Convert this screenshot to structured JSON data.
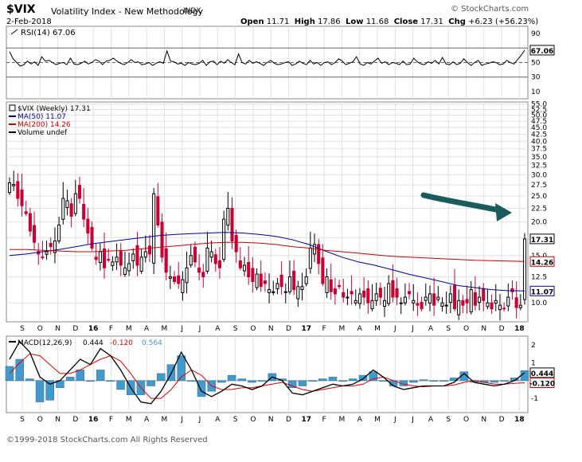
{
  "header": {
    "symbol": "$VIX",
    "name": "Volatility Index - New Methodology",
    "exchange": "INDX",
    "brand": "© StockCharts.com",
    "date": "2-Feb-2018",
    "open_label": "Open",
    "open": "11.71",
    "high_label": "High",
    "high": "17.86",
    "low_label": "Low",
    "low": "11.68",
    "close_label": "Close",
    "close": "17.31",
    "chg_label": "Chg",
    "chg": "+6.23 (+56.23%)"
  },
  "copyright": "©1999-2018 StockCharts.com All Rights Reserved",
  "colors": {
    "up": "#000000",
    "down": "#cc0033",
    "ma50": "#000099",
    "ma200": "#cc0000",
    "histogram": "#4499cc",
    "macd": "#000000",
    "signal": "#dd0000",
    "grid": "#e0e0e0",
    "arrow": "#1a5c5c"
  },
  "chart_data": [
    {
      "type": "line",
      "panel": "RSI",
      "legend": "RSI(14) 67.06",
      "y_ticks": [
        "90",
        "70",
        "50",
        "30",
        "10"
      ],
      "ylim": [
        0,
        100
      ],
      "reference_lines": [
        70,
        50,
        30
      ],
      "last_value_tag": "67.06",
      "series": [
        {
          "name": "RSI(14)",
          "values": [
            65,
            55,
            50,
            45,
            47,
            52,
            48,
            51,
            46,
            58,
            52,
            53,
            50,
            47,
            49,
            50,
            47,
            56,
            48,
            47,
            49,
            52,
            48,
            50,
            54,
            52,
            47,
            52,
            53,
            56,
            52,
            49,
            47,
            50,
            54,
            50,
            51,
            47,
            48,
            50,
            46,
            49,
            51,
            49,
            66,
            52,
            51,
            48,
            49,
            46,
            50,
            48,
            47,
            49,
            53,
            46,
            51,
            52,
            47,
            52,
            49,
            54,
            50,
            47,
            62,
            50,
            48,
            53,
            49,
            51,
            49,
            46,
            50,
            53,
            49,
            47,
            48,
            50,
            51,
            46,
            48,
            52,
            49,
            47,
            53,
            48,
            50,
            46,
            50,
            51,
            47,
            50,
            55,
            52,
            47,
            49,
            51,
            58,
            48,
            46,
            50,
            48,
            52,
            56,
            49,
            51,
            47,
            50,
            49,
            47,
            52,
            47,
            48,
            56,
            51,
            48,
            47,
            51,
            49,
            53,
            48,
            57,
            48,
            47,
            51,
            47,
            49,
            55,
            50,
            46,
            50,
            53,
            46,
            48,
            49,
            51,
            50,
            47,
            48,
            53,
            50,
            48,
            54,
            60,
            67
          ]
        }
      ]
    },
    {
      "type": "line",
      "panel": "Price",
      "chart_style": "candlestick",
      "legend": [
        "$VIX (Weekly) 17.31",
        "MA(50) 11.07",
        "MA(200) 14.26",
        "Volume undef"
      ],
      "y_ticks": [
        "55.0",
        "52.5",
        "50.0",
        "47.5",
        "45.0",
        "42.5",
        "40.0",
        "37.5",
        "35.0",
        "32.5",
        "30.0",
        "27.5",
        "25.0",
        "22.5",
        "20.0",
        "17.5",
        "15.0",
        "12.5",
        "10.0"
      ],
      "ylim": [
        8.5,
        56
      ],
      "scale": "log",
      "price_tags": [
        "17.31",
        "14.26",
        "11.07"
      ],
      "x_ticks": [
        "S",
        "O",
        "N",
        "D",
        "16",
        "F",
        "M",
        "A",
        "M",
        "J",
        "J",
        "A",
        "S",
        "O",
        "N",
        "D",
        "17",
        "F",
        "M",
        "A",
        "M",
        "J",
        "J",
        "A",
        "S",
        "O",
        "N",
        "D",
        "18"
      ],
      "series": [
        {
          "name": "$VIX (Weekly)",
          "values": [
            28.0,
            27.6,
            24.5,
            23.0,
            21.5,
            18.5,
            16.8,
            15.2,
            14.8,
            15.5,
            16.2,
            17.0,
            19.5,
            24.5,
            24.0,
            21.0,
            25.5,
            24.5,
            20.5,
            18.2,
            16.0,
            14.5,
            15.5,
            13.5,
            14.5,
            14.2,
            14.8,
            13.8,
            13.5,
            14.0,
            15.2,
            13.8,
            14.8,
            15.5,
            15.2,
            25.5,
            19.5,
            14.8,
            13.0,
            12.5,
            12.0,
            11.8,
            12.2,
            13.5,
            15.0,
            14.2,
            13.0,
            12.5,
            16.0,
            15.5,
            14.0,
            13.5,
            20.5,
            22.5,
            17.0,
            15.5,
            13.5,
            13.8,
            12.5,
            12.0,
            12.8,
            11.5,
            11.8,
            11.2,
            11.0,
            11.8,
            11.5,
            11.0,
            12.5,
            11.2,
            11.5,
            11.5,
            12.5,
            16.0,
            16.5,
            14.0,
            11.8,
            12.5,
            11.0,
            10.8,
            11.5,
            10.5,
            10.5,
            10.8,
            10.2,
            10.8,
            10.5,
            10.0,
            10.2,
            10.8,
            10.5,
            10.2,
            11.8,
            10.5,
            10.5,
            10.0,
            10.5,
            10.8,
            10.2,
            9.8,
            9.5,
            10.5,
            10.8,
            9.8,
            10.5,
            10.0,
            9.8,
            10.8,
            9.5,
            10.2,
            9.8,
            10.0,
            11.2,
            9.8,
            10.5,
            10.2,
            10.0,
            9.5,
            10.2,
            9.8,
            9.5,
            10.5,
            11.0,
            9.6,
            9.8,
            17.31
          ]
        },
        {
          "name": "MA(50)",
          "values": [
            15.0,
            15.2,
            15.5,
            15.8,
            16.2,
            16.6,
            16.9,
            17.2,
            17.5,
            17.8,
            18.0,
            18.1,
            18.2,
            18.3,
            18.2,
            18.0,
            17.7,
            17.2,
            16.5,
            15.6,
            14.8,
            14.2,
            13.8,
            13.3,
            12.8,
            12.4,
            12.0,
            11.6,
            11.4,
            11.2,
            11.1,
            11.07
          ]
        },
        {
          "name": "MA(200)",
          "values": [
            15.8,
            15.8,
            15.7,
            15.6,
            15.5,
            15.5,
            15.6,
            15.7,
            15.9,
            16.1,
            16.3,
            16.5,
            16.7,
            16.8,
            16.8,
            16.7,
            16.5,
            16.2,
            16.0,
            15.7,
            15.5,
            15.3,
            15.1,
            14.9,
            14.8,
            14.7,
            14.6,
            14.5,
            14.4,
            14.35,
            14.3,
            14.26
          ]
        }
      ]
    },
    {
      "type": "line",
      "panel": "MACD",
      "legend": [
        "MACD(12,26,9)",
        "0.444",
        "-0.120",
        "0.564"
      ],
      "y_ticks": [
        "2",
        "1",
        "0",
        "-1"
      ],
      "ylim": [
        -1.8,
        2.5
      ],
      "value_tags": [
        "0.444",
        "-0.120"
      ],
      "x_ticks": [
        "S",
        "O",
        "N",
        "D",
        "16",
        "F",
        "M",
        "A",
        "M",
        "J",
        "J",
        "A",
        "S",
        "O",
        "N",
        "D",
        "17",
        "F",
        "M",
        "A",
        "M",
        "J",
        "J",
        "A",
        "S",
        "O",
        "N",
        "D",
        "18"
      ],
      "series": [
        {
          "name": "MACD",
          "values": [
            1.2,
            2.2,
            1.6,
            0.2,
            -0.2,
            0.0,
            0.6,
            1.2,
            0.9,
            1.8,
            1.4,
            0.6,
            -0.4,
            -1.2,
            -1.3,
            -0.6,
            0.4,
            1.6,
            0.6,
            -0.6,
            -0.9,
            -0.6,
            -0.2,
            -0.3,
            -0.5,
            -0.3,
            0.2,
            0.0,
            -0.7,
            -0.8,
            -0.6,
            -0.4,
            -0.2,
            -0.3,
            -0.2,
            0.1,
            0.6,
            0.2,
            -0.3,
            -0.5,
            -0.4,
            -0.3,
            -0.3,
            -0.3,
            -0.1,
            0.4,
            -0.1,
            -0.2,
            -0.3,
            -0.2,
            0.0,
            0.444
          ]
        },
        {
          "name": "Signal",
          "values": [
            0.4,
            1.0,
            1.5,
            1.4,
            0.9,
            0.4,
            0.4,
            0.6,
            0.9,
            1.2,
            1.4,
            1.1,
            0.4,
            -0.4,
            -1.0,
            -1.0,
            -0.5,
            0.2,
            0.6,
            0.3,
            -0.3,
            -0.5,
            -0.5,
            -0.4,
            -0.4,
            -0.3,
            -0.2,
            -0.1,
            -0.3,
            -0.5,
            -0.6,
            -0.5,
            -0.4,
            -0.3,
            -0.3,
            -0.2,
            0.1,
            0.2,
            0.0,
            -0.2,
            -0.3,
            -0.35,
            -0.3,
            -0.3,
            -0.25,
            -0.1,
            0.0,
            -0.1,
            -0.2,
            -0.2,
            -0.15,
            -0.12
          ]
        },
        {
          "name": "Histogram",
          "values": [
            0.8,
            1.2,
            0.1,
            -1.2,
            -1.1,
            -0.4,
            0.2,
            0.6,
            0.0,
            0.6,
            0.0,
            -0.5,
            -0.8,
            -0.8,
            -0.3,
            0.4,
            0.9,
            1.4,
            0.0,
            -0.9,
            -0.6,
            -0.1,
            0.3,
            0.1,
            -0.1,
            0.0,
            0.4,
            0.1,
            -0.4,
            -0.3,
            0.0,
            0.1,
            0.2,
            0.0,
            0.1,
            0.3,
            0.5,
            0.0,
            -0.3,
            -0.3,
            -0.1,
            0.05,
            0.0,
            0.0,
            0.15,
            0.5,
            -0.1,
            -0.1,
            -0.1,
            0.0,
            0.15,
            0.564
          ]
        }
      ]
    }
  ]
}
